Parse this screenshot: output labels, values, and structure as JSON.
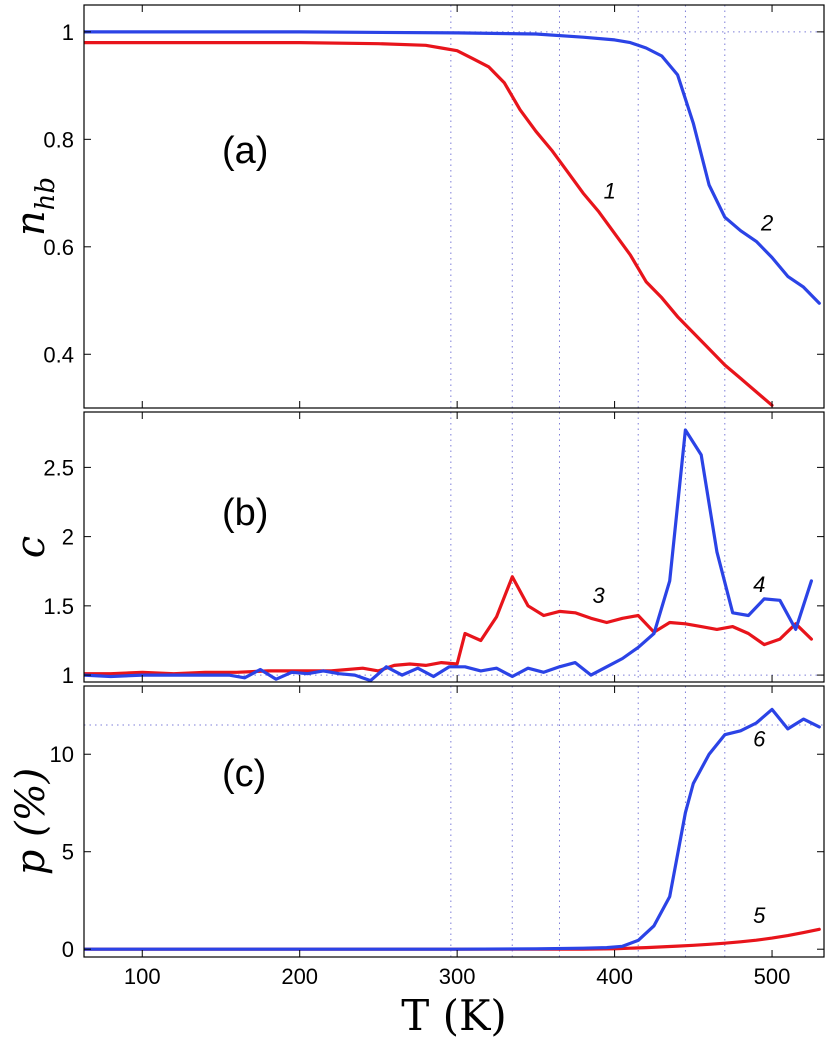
{
  "chart_data": {
    "type": "line",
    "xlabel": "T (K)",
    "x_ticks": [
      "100",
      "200",
      "300",
      "400",
      "500"
    ],
    "xlim": [
      63,
      533
    ],
    "reference_lines": {
      "vertical_x": [
        296,
        335,
        365,
        415,
        445,
        470
      ],
      "horizontal": {
        "a": 1.0,
        "b": 1.0,
        "c": 11.5
      }
    },
    "colors": {
      "red": "#e8141b",
      "blue": "#2b43e6"
    },
    "panels": [
      {
        "id": "a",
        "label": "(a)",
        "ylabel": "n_hb",
        "ylabel_main": "n",
        "ylabel_sub": "hb",
        "ylim": [
          0.3,
          1.05
        ],
        "y_ticks": [
          0.4,
          0.6,
          0.8,
          1
        ],
        "y_tick_labels": [
          "0.4",
          "0.6",
          "0.8",
          "1"
        ],
        "series": [
          {
            "name": "1",
            "color": "red",
            "x": [
              63,
              100,
              150,
              200,
              250,
              280,
              290,
              300,
              310,
              320,
              330,
              340,
              350,
              360,
              370,
              380,
              390,
              400,
              410,
              420,
              430,
              440,
              450,
              460,
              470,
              480,
              490,
              500
            ],
            "y": [
              0.98,
              0.98,
              0.98,
              0.98,
              0.978,
              0.975,
              0.97,
              0.965,
              0.95,
              0.935,
              0.905,
              0.855,
              0.815,
              0.78,
              0.74,
              0.7,
              0.665,
              0.625,
              0.585,
              0.535,
              0.505,
              0.47,
              0.44,
              0.41,
              0.38,
              0.355,
              0.33,
              0.305
            ]
          },
          {
            "name": "2",
            "color": "blue",
            "x": [
              63,
              100,
              200,
              300,
              350,
              380,
              400,
              410,
              420,
              430,
              440,
              450,
              460,
              470,
              480,
              490,
              500,
              510,
              520,
              530
            ],
            "y": [
              1.0,
              1.0,
              1.0,
              0.998,
              0.996,
              0.99,
              0.985,
              0.98,
              0.97,
              0.955,
              0.92,
              0.83,
              0.715,
              0.655,
              0.63,
              0.61,
              0.58,
              0.545,
              0.525,
              0.495
            ]
          }
        ],
        "curve_labels": [
          {
            "text": "1",
            "x": 393,
            "y": 0.69
          },
          {
            "text": "2",
            "x": 493,
            "y": 0.63
          }
        ]
      },
      {
        "id": "b",
        "label": "(b)",
        "ylabel": "c",
        "ylim": [
          0.95,
          2.9
        ],
        "y_ticks": [
          1,
          1.5,
          2,
          2.5
        ],
        "y_tick_labels": [
          "1",
          "1.5",
          "2",
          "2.5"
        ],
        "series": [
          {
            "name": "3",
            "color": "red",
            "x": [
              63,
              80,
              100,
              120,
              140,
              160,
              180,
              200,
              220,
              240,
              250,
              260,
              270,
              280,
              290,
              300,
              305,
              315,
              325,
              335,
              345,
              355,
              365,
              375,
              385,
              395,
              405,
              415,
              425,
              435,
              445,
              455,
              465,
              475,
              485,
              495,
              505,
              515,
              525
            ],
            "y": [
              1.01,
              1.01,
              1.02,
              1.01,
              1.02,
              1.02,
              1.03,
              1.03,
              1.03,
              1.05,
              1.03,
              1.07,
              1.08,
              1.07,
              1.09,
              1.08,
              1.3,
              1.25,
              1.42,
              1.71,
              1.5,
              1.43,
              1.46,
              1.45,
              1.41,
              1.38,
              1.41,
              1.43,
              1.31,
              1.38,
              1.37,
              1.35,
              1.33,
              1.35,
              1.3,
              1.22,
              1.26,
              1.37,
              1.26
            ]
          },
          {
            "name": "4",
            "color": "blue",
            "x": [
              63,
              80,
              100,
              120,
              140,
              155,
              165,
              175,
              185,
              195,
              205,
              215,
              225,
              235,
              245,
              255,
              265,
              275,
              285,
              295,
              305,
              315,
              325,
              335,
              345,
              355,
              365,
              375,
              385,
              395,
              405,
              415,
              425,
              435,
              445,
              455,
              465,
              475,
              485,
              495,
              505,
              515,
              525
            ],
            "y": [
              1.0,
              0.99,
              1.0,
              1.0,
              1.0,
              1.0,
              0.98,
              1.04,
              0.97,
              1.02,
              1.01,
              1.03,
              1.01,
              1.0,
              0.96,
              1.06,
              1.0,
              1.05,
              0.99,
              1.06,
              1.06,
              1.03,
              1.05,
              0.99,
              1.05,
              1.02,
              1.06,
              1.09,
              1.0,
              1.06,
              1.12,
              1.2,
              1.3,
              1.68,
              2.77,
              2.59,
              1.89,
              1.45,
              1.43,
              1.55,
              1.54,
              1.33,
              1.68
            ]
          }
        ],
        "curve_labels": [
          {
            "text": "3",
            "x": 386,
            "y": 1.52
          },
          {
            "text": "4",
            "x": 488,
            "y": 1.6
          }
        ]
      },
      {
        "id": "c",
        "label": "(c)",
        "ylabel": "p (%)",
        "ylim": [
          -0.4,
          13.5
        ],
        "y_ticks": [
          0,
          5,
          10
        ],
        "y_tick_labels": [
          "0",
          "5",
          "10"
        ],
        "series": [
          {
            "name": "5",
            "color": "red",
            "x": [
              63,
              200,
              300,
              380,
              400,
              410,
              420,
              430,
              440,
              450,
              460,
              470,
              480,
              490,
              500,
              510,
              520,
              530
            ],
            "y": [
              0,
              0,
              0,
              0,
              0.02,
              0.05,
              0.08,
              0.12,
              0.16,
              0.2,
              0.25,
              0.31,
              0.38,
              0.46,
              0.57,
              0.7,
              0.85,
              1.02
            ]
          },
          {
            "name": "6",
            "color": "blue",
            "x": [
              63,
              200,
              300,
              350,
              380,
              395,
              405,
              415,
              425,
              435,
              445,
              450,
              460,
              470,
              480,
              490,
              500,
              505,
              510,
              520,
              530
            ],
            "y": [
              0,
              0,
              0,
              0.02,
              0.05,
              0.08,
              0.15,
              0.45,
              1.2,
              2.7,
              7.0,
              8.5,
              10.0,
              11.0,
              11.2,
              11.6,
              12.3,
              11.8,
              11.3,
              11.8,
              11.4
            ]
          }
        ],
        "curve_labels": [
          {
            "text": "6",
            "x": 488,
            "y": 10.4
          },
          {
            "text": "5",
            "x": 488,
            "y": 1.35
          }
        ]
      }
    ]
  }
}
